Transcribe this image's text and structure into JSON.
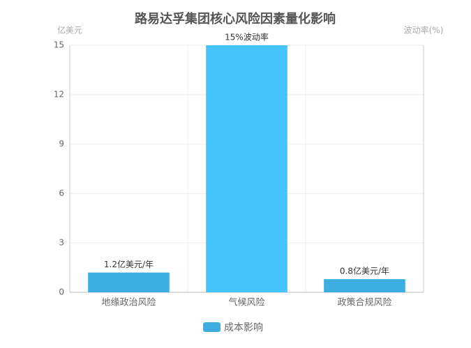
{
  "chart_data": {
    "type": "bar",
    "title": "路易达孚集团核心风险因素量化影响",
    "y_label": "亿美元",
    "y2_label": "波动率(%)",
    "categories": [
      "地缘政治风险",
      "气候风险",
      "政策合规风险"
    ],
    "series_name": "成本影响",
    "values": [
      1.2,
      15,
      0.8
    ],
    "value_labels": [
      "1.2亿美元/年",
      "15%波动率",
      "0.8亿美元/年"
    ],
    "color": "#3daee0",
    "colors": [
      "#3daee0",
      "#45c3fb",
      "#3daee0"
    ],
    "ylim": [
      0,
      15
    ],
    "yticks": [
      0,
      3,
      6,
      9,
      12,
      15
    ],
    "grid": true
  }
}
